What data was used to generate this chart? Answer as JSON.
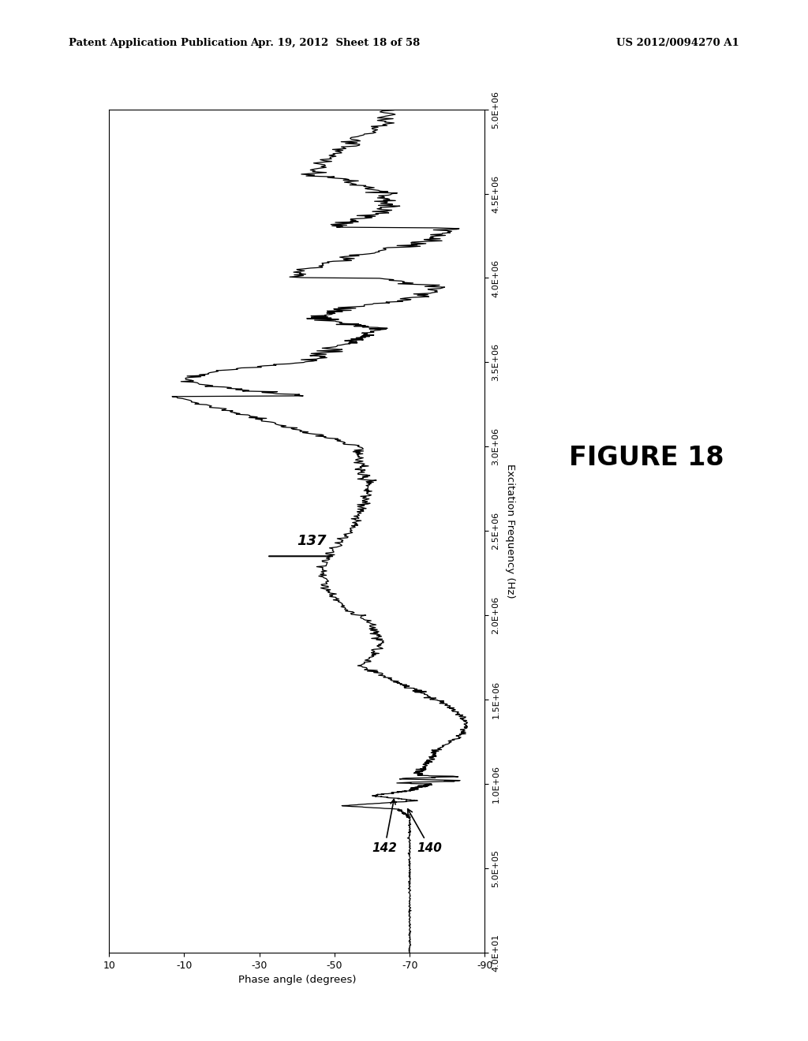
{
  "title": "FIGURE 18",
  "xlabel_rotated": "Phase angle (degrees)",
  "ylabel_rotated": "Excitation Frequency (Hz)",
  "x_ticks": [
    10,
    -10,
    -30,
    -50,
    -70,
    -90
  ],
  "y_ticks_labels": [
    "4.0E+01",
    "5.0E+05",
    "1.0E+06",
    "1.5E+06",
    "2.0E+06",
    "2.5E+06",
    "3.0E+06",
    "3.5E+06",
    "4.0E+06",
    "4.5E+06",
    "5.0E+06"
  ],
  "y_ticks_values": [
    40,
    500000,
    1000000,
    1500000,
    2000000,
    2500000,
    3000000,
    3500000,
    4000000,
    4500000,
    5000000
  ],
  "label_137": "137",
  "label_140": "140",
  "label_142": "142",
  "header_left": "Patent Application Publication",
  "header_center": "Apr. 19, 2012  Sheet 18 of 58",
  "header_right": "US 2012/0094270 A1",
  "bg_color": "#ffffff",
  "line_color": "#000000"
}
